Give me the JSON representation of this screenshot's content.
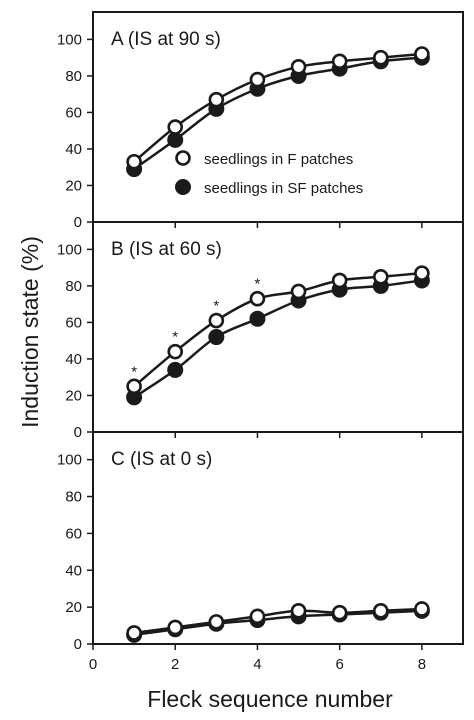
{
  "colors": {
    "ink": "#1a1a1a",
    "open_fill": "#ffffff",
    "filled": "#1a1a1a",
    "background": "#ffffff"
  },
  "chart_data": {
    "type": "scatter",
    "panels_stacked_share_x_axis": true,
    "xlabel": "Fleck sequence number",
    "ylabel": "Induction state (%)",
    "xlim": [
      0,
      9
    ],
    "ylim": [
      0,
      115
    ],
    "x_ticks": [
      0,
      2,
      4,
      6,
      8
    ],
    "y_ticks": [
      0,
      20,
      40,
      60,
      80,
      100
    ],
    "fitted_curves": true,
    "legend": {
      "panel": "A",
      "entries": [
        {
          "marker": "open-circle",
          "label": "seedlings in F patches"
        },
        {
          "marker": "filled-circle",
          "label": "seedlings in SF patches"
        }
      ]
    },
    "panels": [
      {
        "id": "A",
        "title": "A (IS at 90 s)",
        "x": [
          1,
          2,
          3,
          4,
          5,
          6,
          7,
          8
        ],
        "series": [
          {
            "name": "seedlings in F patches",
            "marker": "open-circle",
            "values": [
              33,
              52,
              67,
              78,
              85,
              88,
              90,
              92
            ]
          },
          {
            "name": "seedlings in SF patches",
            "marker": "filled-circle",
            "values": [
              29,
              45,
              62,
              73,
              80,
              84,
              88,
              90
            ]
          }
        ],
        "significance_marks": []
      },
      {
        "id": "B",
        "title": "B (IS at 60 s)",
        "x": [
          1,
          2,
          3,
          4,
          5,
          6,
          7,
          8
        ],
        "series": [
          {
            "name": "seedlings in F patches",
            "marker": "open-circle",
            "values": [
              25,
              44,
              61,
              73,
              77,
              83,
              85,
              87
            ]
          },
          {
            "name": "seedlings in SF patches",
            "marker": "filled-circle",
            "values": [
              19,
              34,
              52,
              62,
              72,
              78,
              80,
              83
            ]
          }
        ],
        "significance_marks": [
          {
            "x": 1,
            "label": "*"
          },
          {
            "x": 2,
            "label": "*"
          },
          {
            "x": 3,
            "label": "*"
          },
          {
            "x": 4,
            "label": "*"
          }
        ]
      },
      {
        "id": "C",
        "title": "C (IS at 0 s)",
        "x": [
          1,
          2,
          3,
          4,
          5,
          6,
          7,
          8
        ],
        "series": [
          {
            "name": "seedlings in F patches",
            "marker": "open-circle",
            "values": [
              6,
              9,
              12,
              15,
              18,
              17,
              18,
              19
            ]
          },
          {
            "name": "seedlings in SF patches",
            "marker": "filled-circle",
            "values": [
              5,
              8,
              11,
              13,
              15,
              16,
              17,
              18
            ]
          }
        ],
        "significance_marks": []
      }
    ]
  }
}
